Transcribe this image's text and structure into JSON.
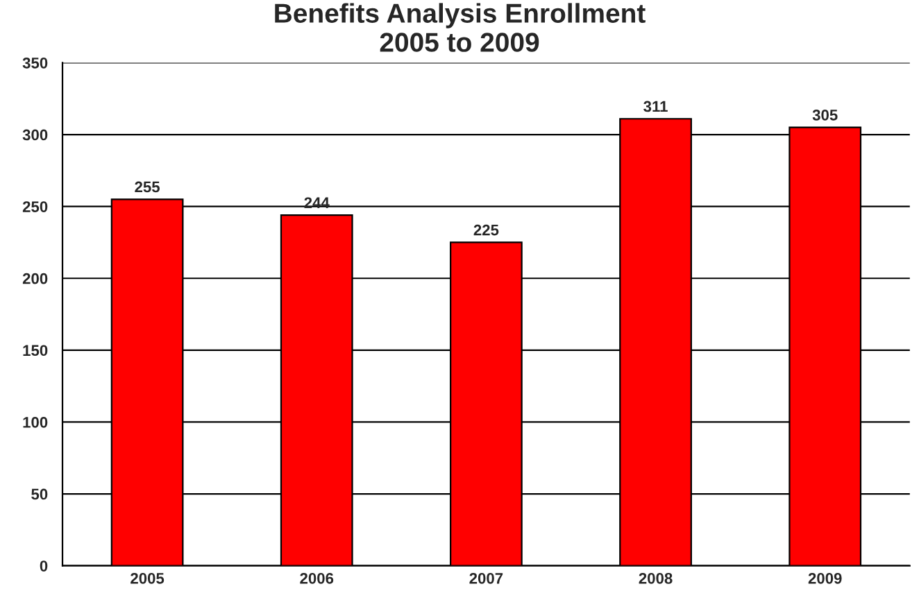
{
  "chart_data": {
    "type": "bar",
    "title": "Benefits Analysis Enrollment\n2005 to 2009",
    "categories": [
      "2005",
      "2006",
      "2007",
      "2008",
      "2009"
    ],
    "values": [
      255,
      244,
      225,
      311,
      305
    ],
    "color": "#ff0000",
    "ylim": [
      0,
      350
    ],
    "yticks": [
      0,
      50,
      100,
      150,
      200,
      250,
      300,
      350
    ],
    "grid": "y",
    "data_labels": true
  }
}
